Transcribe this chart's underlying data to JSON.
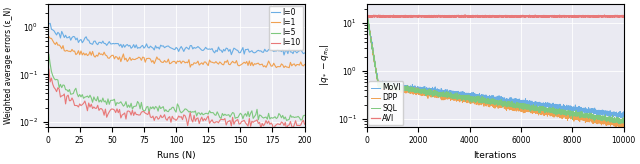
{
  "left": {
    "xlabel": "Runs (N)",
    "ylabel": "Weighted average errors (ε_N)",
    "xlim": [
      0,
      200
    ],
    "legend_labels": [
      "l=0",
      "l=1",
      "l=5",
      "l=10"
    ],
    "colors": [
      "#6aade4",
      "#f0a050",
      "#7ec87e",
      "#e87878"
    ],
    "xticks": [
      0,
      25,
      50,
      75,
      100,
      125,
      150,
      175,
      200
    ],
    "ylim": [
      0.008,
      3.0
    ]
  },
  "right": {
    "xlabel": "Iterations",
    "ylabel": "|q_* - q_{\\pi_0}|",
    "xlim": [
      0,
      10000
    ],
    "legend_labels": [
      "MoVI",
      "DPP",
      "SQL",
      "AVI"
    ],
    "colors": [
      "#6aade4",
      "#f0a050",
      "#7ec87e",
      "#e87878"
    ],
    "xticks": [
      0,
      2000,
      4000,
      6000,
      8000,
      10000
    ],
    "ylim": [
      0.07,
      25.0
    ]
  },
  "figsize": [
    6.4,
    1.64
  ],
  "dpi": 100,
  "background": "#eaeaf2"
}
